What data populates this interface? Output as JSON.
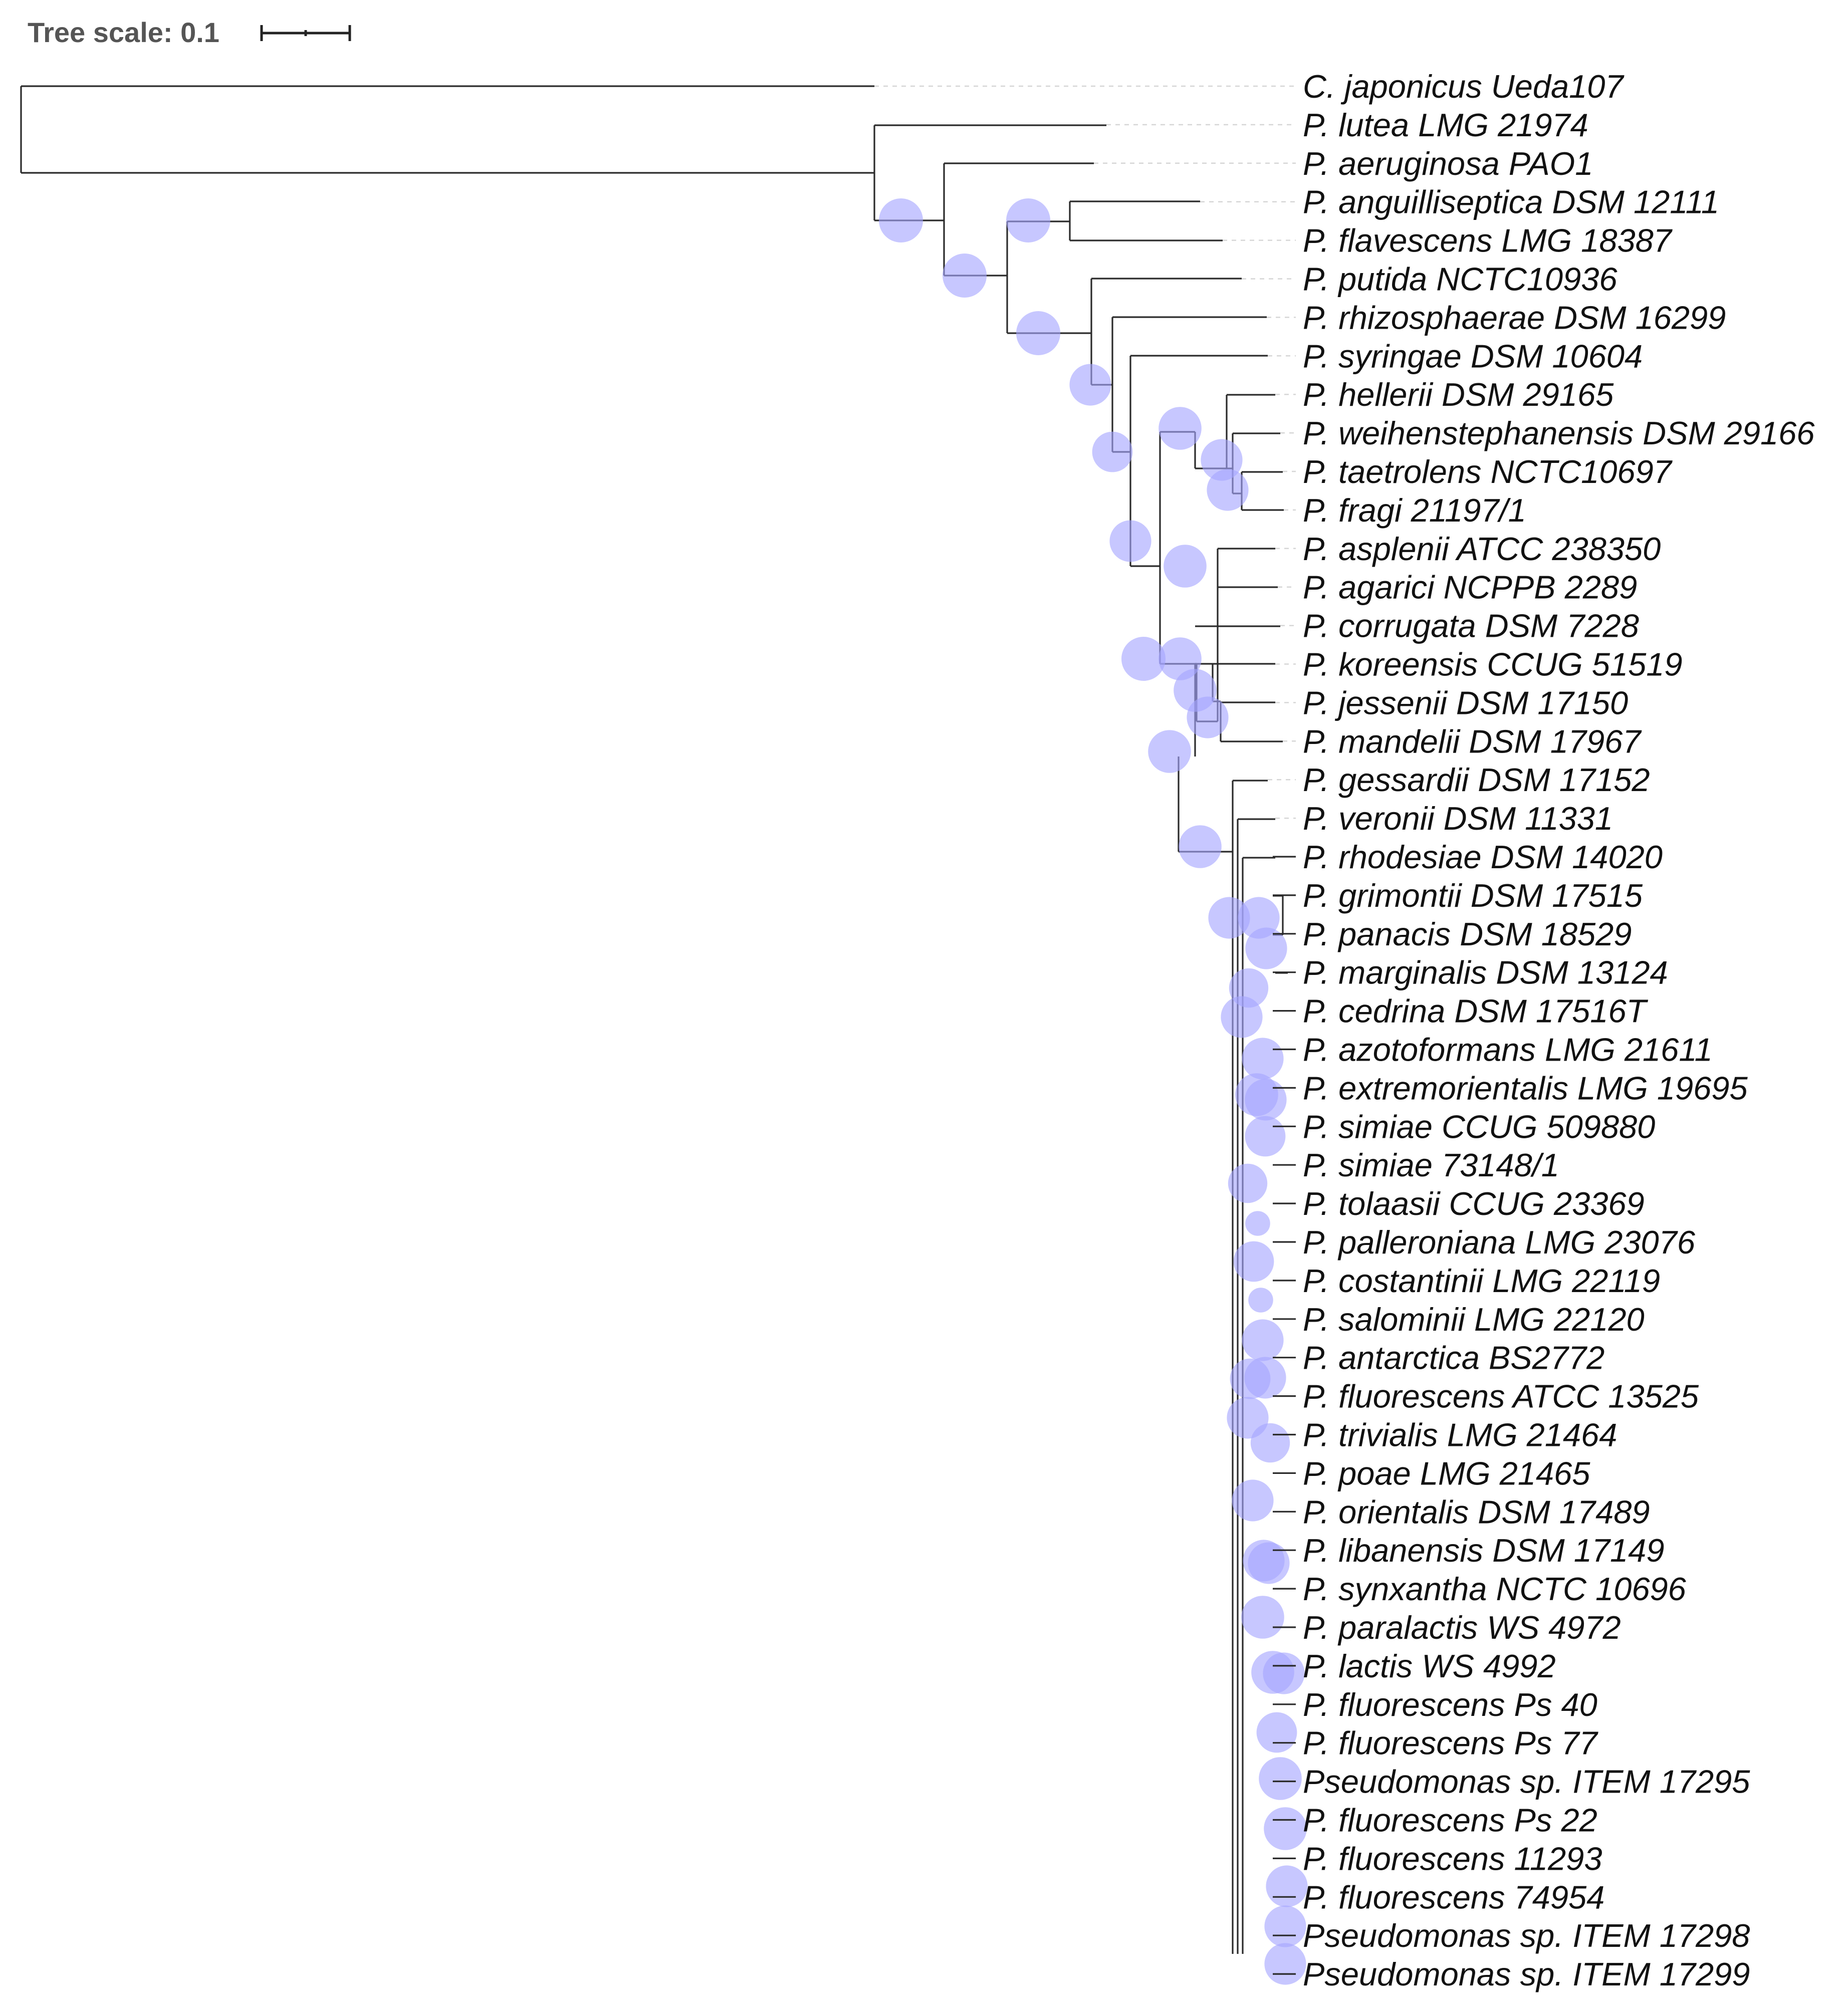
{
  "tree_scale": {
    "label": "Tree scale: 0.1",
    "units": 0.1
  },
  "colors": {
    "branch": "#2b2b2b",
    "bootstrap_marker": "#a5a5ff",
    "guide_line": "#d6d6d6",
    "label_text": "#111111"
  },
  "leaves": [
    "C. japonicus Ueda107",
    "P. lutea LMG 21974",
    "P. aeruginosa PAO1",
    "P. anguilliseptica DSM 12111",
    "P. flavescens LMG 18387",
    "P. putida NCTC10936",
    "P. rhizosphaerae DSM 16299",
    "P. syringae DSM 10604",
    "P. hellerii DSM 29165",
    "P. weihenstephanensis DSM 29166",
    "P. taetrolens NCTC10697",
    "P. fragi 21197/1",
    "P. asplenii ATCC 238350",
    "P. agarici NCPPB 2289",
    "P. corrugata DSM 7228",
    "P. koreensis CCUG 51519",
    "P. jessenii DSM 17150",
    "P. mandelii DSM 17967",
    "P. gessardii DSM 17152",
    "P. veronii DSM 11331",
    "P. rhodesiae DSM 14020",
    "P. grimontii DSM 17515",
    "P. panacis DSM 18529",
    "P. marginalis DSM 13124",
    "P. cedrina DSM 17516T",
    "P. azotoformans LMG 21611",
    "P. extremorientalis LMG 19695",
    "P. simiae CCUG 509880",
    "P. simiae 73148/1",
    "P. tolaasii CCUG 23369",
    "P. palleroniana LMG 23076",
    "P. costantinii LMG 22119",
    "P. salominii LMG 22120",
    "P. antarctica BS2772",
    "P. fluorescens ATCC 13525",
    "P. trivialis LMG 21464",
    "P. poae LMG 21465",
    "P. orientalis DSM 17489",
    "P. libanensis DSM 17149",
    "P. synxantha NCTC 10696",
    "P. paralactis WS 4972",
    "P. lactis WS 4992",
    "P. fluorescens Ps 40",
    "P. fluorescens Ps 77",
    "Pseudomonas sp. ITEM 17295",
    "P. fluorescens Ps 22",
    "P. fluorescens 11293",
    "P. fluorescens 74954",
    "Pseudomonas sp. ITEM 17298",
    "Pseudomonas sp. ITEM 17299"
  ],
  "bootstrap_markers": [
    {
      "node": "aeruginosa-crown",
      "size": 1.0
    },
    {
      "node": "anguilliseptica-flavescens",
      "size": 1.0
    },
    {
      "node": "crown-below-aeruginosa",
      "size": 1.0
    },
    {
      "node": "crown-below-anguilliseptica",
      "size": 1.0
    },
    {
      "node": "crown-below-putida",
      "size": 0.9
    },
    {
      "node": "crown-below-rhizosphaerae",
      "size": 0.85
    },
    {
      "node": "crown-below-syringae",
      "size": 0.9
    },
    {
      "node": "fragi-group",
      "size": 0.95
    },
    {
      "node": "weihenstephanensis-taetrolens-fragi",
      "size": 0.9
    },
    {
      "node": "taetrolens-fragi",
      "size": 0.9
    },
    {
      "node": "asplenii-agarici",
      "size": 0.95
    },
    {
      "node": "corrugata-to-fluorescens",
      "size": 1.0
    },
    {
      "node": "koreensis-group",
      "size": 0.95
    },
    {
      "node": "jessenii-mandelii",
      "size": 0.95
    },
    {
      "node": "mandelii",
      "size": 0.9
    },
    {
      "node": "fluorescens-group",
      "size": 0.95
    },
    {
      "node": "gessardii-subgroup",
      "size": 0.95
    },
    {
      "node": "fluorescens-subgroup",
      "size": 0.9
    },
    {
      "node": "grimontii-panacis",
      "size": 0.9
    },
    {
      "node": "panacis-marginalis",
      "size": 0.9
    },
    {
      "node": "cedrina-node",
      "size": 0.8
    },
    {
      "node": "azotoformans-node",
      "size": 0.9
    },
    {
      "node": "azotoformans-extremorientalis",
      "size": 0.9
    },
    {
      "node": "extremorientalis-simiae",
      "size": 0.95
    },
    {
      "node": "extremorientalis-inner",
      "size": 0.85
    },
    {
      "node": "simiae-pair",
      "size": 0.9
    },
    {
      "node": "tolaasii-node",
      "size": 0.8
    },
    {
      "node": "tolaasii-palleroniana",
      "size": 0.2
    },
    {
      "node": "costantinii-node",
      "size": 0.85
    },
    {
      "node": "salominii-node",
      "size": 0.2
    },
    {
      "node": "antarctica-node",
      "size": 0.9
    },
    {
      "node": "antarctica-fluorescens",
      "size": 0.9
    },
    {
      "node": "fluorescens-atcc-node",
      "size": 0.85
    },
    {
      "node": "trivialis-poae",
      "size": 0.9
    },
    {
      "node": "orientalis-node",
      "size": 0.8
    },
    {
      "node": "libanensis-node",
      "size": 0.9
    },
    {
      "node": "libanensis-synxantha",
      "size": 0.9
    },
    {
      "node": "paralactis-node",
      "size": 0.9
    },
    {
      "node": "lactis-node",
      "size": 0.95
    },
    {
      "node": "lactis-fluorescens",
      "size": 0.95
    },
    {
      "node": "fluorescens-ps77",
      "size": 0.9
    },
    {
      "node": "item17295",
      "size": 0.85
    },
    {
      "node": "fluorescens-ps22",
      "size": 0.95
    },
    {
      "node": "fluorescens-11293",
      "size": 0.95
    },
    {
      "node": "fluorescens-74954",
      "size": 0.9
    },
    {
      "node": "item17298",
      "size": 0.9
    },
    {
      "node": "item17299",
      "size": 0.9
    }
  ]
}
